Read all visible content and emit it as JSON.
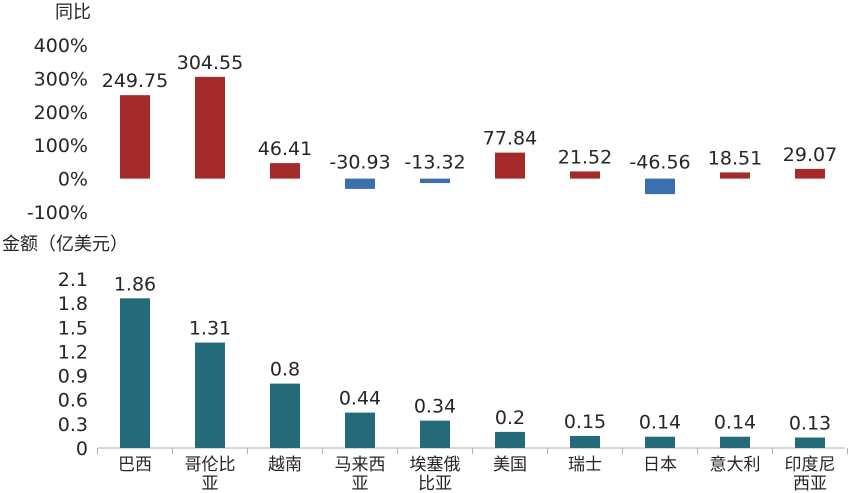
{
  "colors": {
    "positive": "#A52A2A",
    "negative": "#3A6FB0",
    "amount": "#246A78",
    "axis": "#B0B0B0",
    "text": "#262626"
  },
  "chart_data": [
    {
      "type": "bar",
      "ylabel": "同比",
      "ylim": [
        -100,
        400
      ],
      "yticks": [
        "400%",
        "300%",
        "200%",
        "100%",
        "0%",
        "-100%"
      ],
      "categories": [
        "巴西",
        "哥伦比亚",
        "越南",
        "马来西亚",
        "埃塞俄比亚",
        "美国",
        "瑞士",
        "日本",
        "意大利",
        "印度尼西亚"
      ],
      "values": [
        249.75,
        304.55,
        46.41,
        -30.93,
        -13.32,
        77.84,
        21.52,
        -46.56,
        18.51,
        29.07
      ],
      "labels": [
        "249.75",
        "304.55",
        "46.41",
        "-30.93",
        "-13.32",
        "77.84",
        "21.52",
        "-46.56",
        "18.51",
        "29.07"
      ]
    },
    {
      "type": "bar",
      "ylabel": "金额（亿美元）",
      "ylim": [
        0,
        2.1
      ],
      "yticks": [
        "2.1",
        "1.8",
        "1.5",
        "1.2",
        "0.9",
        "0.6",
        "0.3",
        "0"
      ],
      "categories": [
        "巴西",
        "哥伦比亚",
        "越南",
        "马来西亚",
        "埃塞俄比亚",
        "美国",
        "瑞士",
        "日本",
        "意大利",
        "印度尼西亚"
      ],
      "category_lines": [
        [
          "巴西"
        ],
        [
          "哥伦比",
          "亚"
        ],
        [
          "越南"
        ],
        [
          "马来西",
          "亚"
        ],
        [
          "埃塞俄",
          "比亚"
        ],
        [
          "美国"
        ],
        [
          "瑞士"
        ],
        [
          "日本"
        ],
        [
          "意大利"
        ],
        [
          "印度尼",
          "西亚"
        ]
      ],
      "values": [
        1.86,
        1.31,
        0.8,
        0.44,
        0.34,
        0.2,
        0.15,
        0.14,
        0.14,
        0.13
      ],
      "labels": [
        "1.86",
        "1.31",
        "0.8",
        "0.44",
        "0.34",
        "0.2",
        "0.15",
        "0.14",
        "0.14",
        "0.13"
      ]
    }
  ]
}
